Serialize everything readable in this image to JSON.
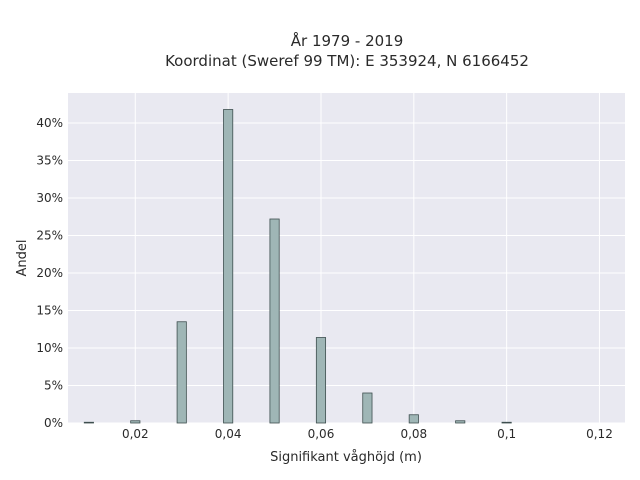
{
  "chart_data": {
    "type": "bar",
    "title_line1": "År 1979 - 2019",
    "title_line2": "Koordinat (Sweref 99 TM): E 353924, N 6166452",
    "xlabel": "Signifikant våghöjd (m)",
    "ylabel": "Andel",
    "xlim": [
      0.0055,
      0.1255
    ],
    "ylim": [
      0,
      0.44
    ],
    "x_ticks": [
      0.02,
      0.04,
      0.06,
      0.08,
      0.1,
      0.12
    ],
    "x_tick_labels": [
      "0,02",
      "0,04",
      "0,06",
      "0,08",
      "0,1",
      "0,12"
    ],
    "y_ticks": [
      0,
      0.05,
      0.1,
      0.15,
      0.2,
      0.25,
      0.3,
      0.35,
      0.4
    ],
    "y_tick_labels": [
      "0%",
      "5%",
      "10%",
      "15%",
      "20%",
      "25%",
      "30%",
      "35%",
      "40%"
    ],
    "bar_width": 0.002,
    "x": [
      0.01,
      0.02,
      0.03,
      0.04,
      0.05,
      0.06,
      0.07,
      0.08,
      0.09,
      0.1
    ],
    "values": [
      0.001,
      0.003,
      0.135,
      0.418,
      0.272,
      0.114,
      0.04,
      0.011,
      0.003,
      0.001
    ],
    "grid": true,
    "colors": {
      "plot_bg": "#e9e9f1",
      "grid": "#ffffff",
      "bar_fill": "#9fb6b6",
      "bar_stroke": "#3e4f4f"
    }
  }
}
